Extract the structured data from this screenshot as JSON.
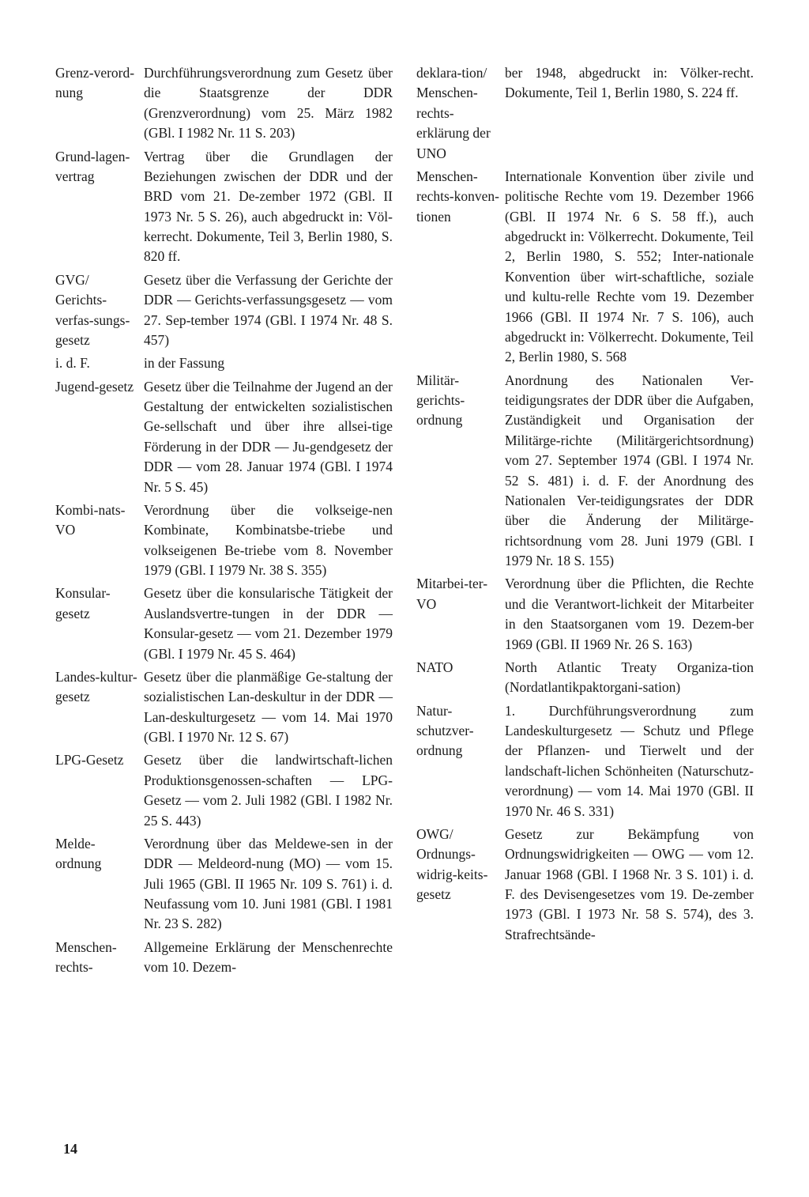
{
  "page_number": "14",
  "left_column": [
    {
      "term": "Grenz-verord-nung",
      "def": "Durchführungsverordnung zum Gesetz über die Staatsgrenze der DDR (Grenzverordnung) vom 25. März 1982 (GBl. I 1982 Nr. 11 S. 203)"
    },
    {
      "term": "Grund-lagen-vertrag",
      "def": "Vertrag über die Grundlagen der Beziehungen zwischen der DDR und der BRD vom 21. De-zember 1972 (GBl. II 1973 Nr. 5 S. 26), auch abgedruckt in: Völ-kerrecht. Dokumente, Teil 3, Berlin 1980, S. 820 ff."
    },
    {
      "term": "GVG/ Gerichts-verfas-sungs-gesetz",
      "def": "Gesetz über die Verfassung der Gerichte der DDR — Gerichts-verfassungsgesetz — vom 27. Sep-tember 1974 (GBl. I 1974 Nr. 48 S. 457)"
    },
    {
      "term": "i. d. F.",
      "def": "in der Fassung"
    },
    {
      "term": "Jugend-gesetz",
      "def": "Gesetz über die Teilnahme der Jugend an der Gestaltung der entwickelten sozialistischen Ge-sellschaft und über ihre allsei-tige Förderung in der DDR — Ju-gendgesetz der DDR — vom 28. Januar 1974 (GBl. I 1974 Nr. 5 S. 45)"
    },
    {
      "term": "Kombi-nats-VO",
      "def": "Verordnung über die volkseige-nen Kombinate, Kombinatsbe-triebe und volkseigenen Be-triebe vom 8. November 1979 (GBl. I 1979 Nr. 38 S. 355)"
    },
    {
      "term": "Konsular-gesetz",
      "def": "Gesetz über die konsularische Tätigkeit der Auslandsvertre-tungen in der DDR — Konsular-gesetz — vom 21. Dezember 1979 (GBl. I 1979 Nr. 45 S. 464)"
    },
    {
      "term": "Landes-kultur-gesetz",
      "def": "Gesetz über die planmäßige Ge-staltung der sozialistischen Lan-deskultur in der DDR — Lan-deskulturgesetz — vom 14. Mai 1970 (GBl. I 1970 Nr. 12 S. 67)"
    },
    {
      "term": "LPG-Gesetz",
      "def": "Gesetz über die landwirtschaft-lichen Produktionsgenossen-schaften — LPG-Gesetz — vom 2. Juli 1982 (GBl. I 1982 Nr. 25 S. 443)"
    },
    {
      "term": "Melde-ordnung",
      "def": "Verordnung über das Meldewe-sen in der DDR — Meldeord-nung (MO) — vom 15. Juli 1965 (GBl. II 1965 Nr. 109 S. 761) i. d. Neufassung vom 10. Juni 1981 (GBl. I 1981 Nr. 23 S. 282)"
    },
    {
      "term": "Menschen-rechts-",
      "def": "Allgemeine Erklärung der Menschenrechte vom 10. Dezem-"
    }
  ],
  "right_column": [
    {
      "term": "deklara-tion/ Menschen-rechts-erklärung der UNO",
      "def": "ber 1948, abgedruckt in: Völker-recht. Dokumente, Teil 1, Berlin 1980, S. 224 ff."
    },
    {
      "term": "Menschen-rechts-konven-tionen",
      "def": "Internationale Konvention über zivile und politische Rechte vom 19. Dezember 1966 (GBl. II 1974 Nr. 6 S. 58 ff.), auch abgedruckt in: Völkerrecht. Dokumente, Teil 2, Berlin 1980, S. 552; Inter-nationale Konvention über wirt-schaftliche, soziale und kultu-relle Rechte vom 19. Dezember 1966 (GBl. II 1974 Nr. 7 S. 106), auch abgedruckt in: Völkerrecht. Dokumente, Teil 2, Berlin 1980, S. 568"
    },
    {
      "term": "Militär-gerichts-ordnung",
      "def": "Anordnung des Nationalen Ver-teidigungsrates der DDR über die Aufgaben, Zuständigkeit und Organisation der Militärge-richte (Militärgerichtsordnung) vom 27. September 1974 (GBl. I 1974 Nr. 52 S. 481) i. d. F. der Anordnung des Nationalen Ver-teidigungsrates der DDR über die Änderung der Militärge-richtsordnung vom 28. Juni 1979 (GBl. I 1979 Nr. 18 S. 155)"
    },
    {
      "term": "Mitarbei-ter-VO",
      "def": "Verordnung über die Pflichten, die Rechte und die Verantwort-lichkeit der Mitarbeiter in den Staatsorganen vom 19. Dezem-ber 1969 (GBl. II 1969 Nr. 26 S. 163)"
    },
    {
      "term": "NATO",
      "def": "North Atlantic Treaty Organiza-tion (Nordatlantikpaktorgani-sation)"
    },
    {
      "term": "Natur-schutzver-ordnung",
      "def": "1. Durchführungsverordnung zum Landeskulturgesetz — Schutz und Pflege der Pflanzen- und Tierwelt und der landschaft-lichen Schönheiten (Naturschutz-verordnung) — vom 14. Mai 1970 (GBl. II 1970 Nr. 46 S. 331)"
    },
    {
      "term": "OWG/ Ordnungs-widrig-keits-gesetz",
      "def": "Gesetz zur Bekämpfung von Ordnungswidrigkeiten — OWG — vom 12. Januar 1968 (GBl. I 1968 Nr. 3 S. 101) i. d. F. des Devisengesetzes vom 19. De-zember 1973 (GBl. I 1973 Nr. 58 S. 574), des 3. Strafrechtsände-"
    }
  ]
}
